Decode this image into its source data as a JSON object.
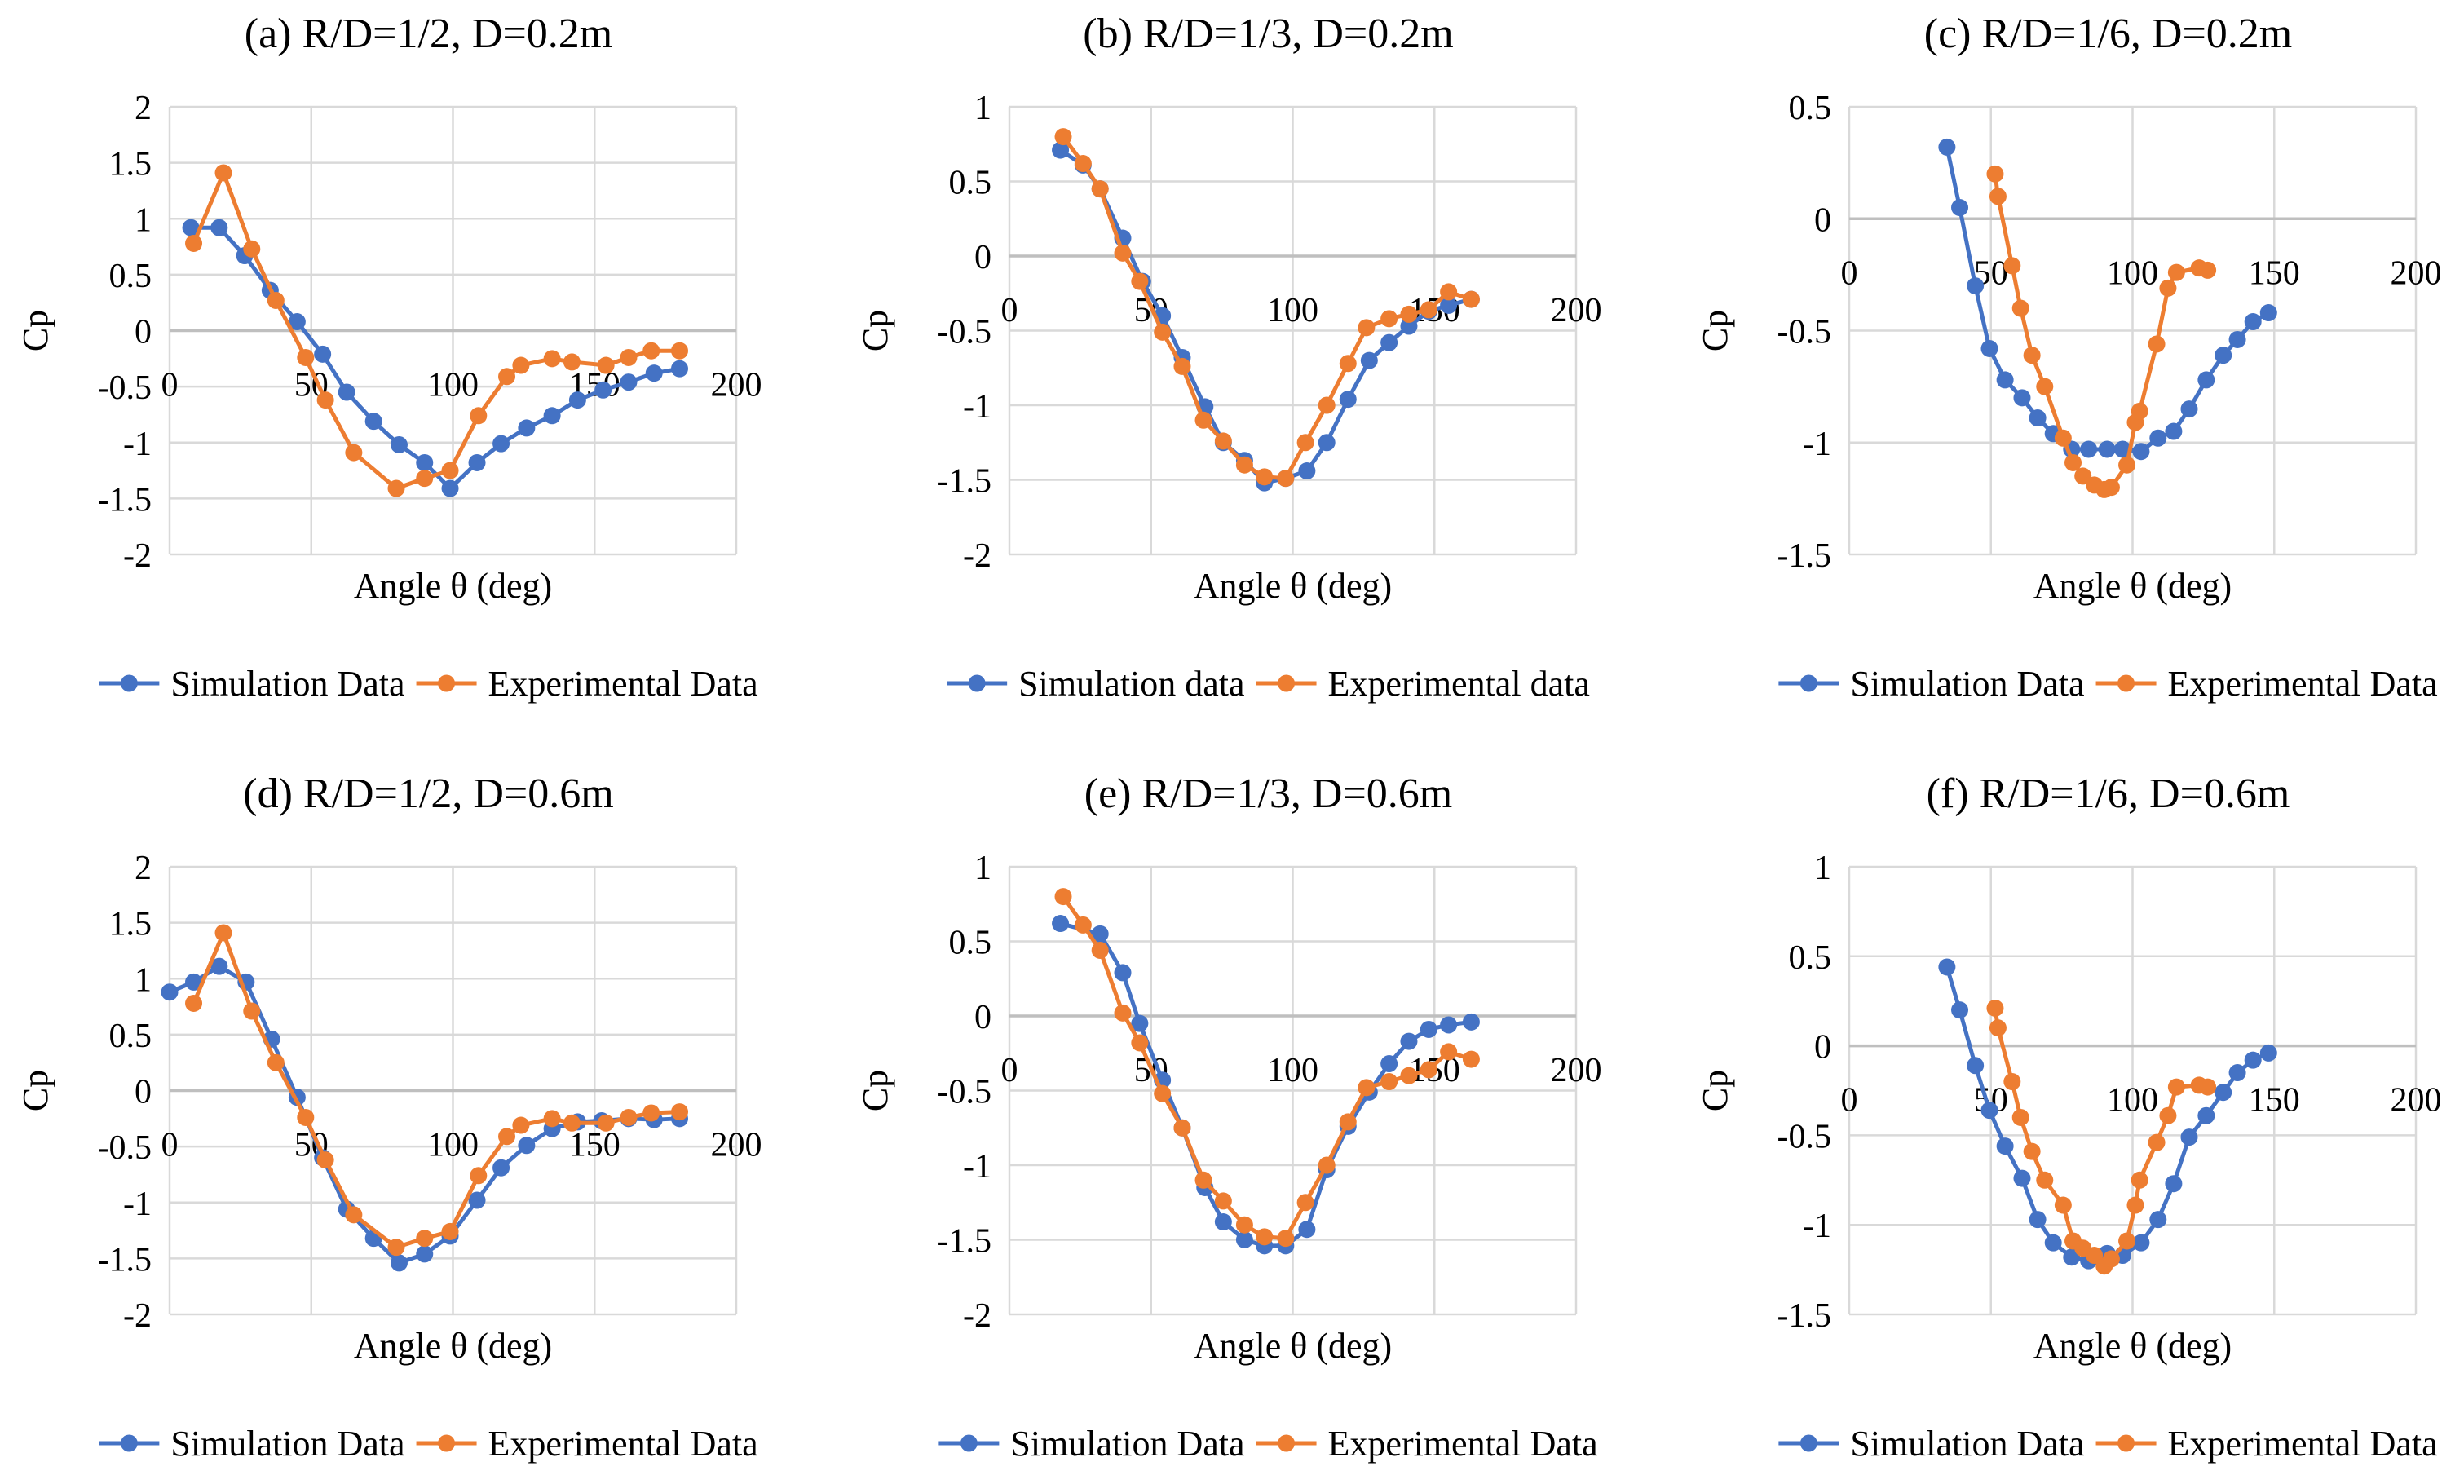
{
  "colors": {
    "simulation": "#4472C4",
    "experimental": "#ED7D31"
  },
  "chart_data": [
    {
      "type": "line",
      "title": "(a) R/D=1/2, D=0.2m",
      "xlabel": "Angle θ (deg)",
      "ylabel": "Cp",
      "xlim": [
        0,
        200
      ],
      "ylim": [
        -2,
        2
      ],
      "xticks": [
        0,
        50,
        100,
        150,
        200
      ],
      "yticks": [
        -2,
        -1.5,
        -1,
        -0.5,
        0,
        0.5,
        1,
        1.5,
        2
      ],
      "grid": true,
      "legend": "bottom",
      "series": [
        {
          "name": "Simulation Data",
          "color": "#4472C4",
          "x": [
            7.5,
            17.5,
            26.5,
            35.5,
            45,
            54,
            62.5,
            72,
            81,
            90,
            99,
            108.5,
            117,
            126,
            135,
            144,
            153,
            162,
            171,
            180
          ],
          "y": [
            0.92,
            0.92,
            0.67,
            0.36,
            0.08,
            -0.21,
            -0.55,
            -0.81,
            -1.02,
            -1.18,
            -1.41,
            -1.18,
            -1.01,
            -0.87,
            -0.76,
            -0.62,
            -0.53,
            -0.46,
            -0.38,
            -0.34
          ]
        },
        {
          "name": "Experimental Data",
          "color": "#ED7D31",
          "x": [
            8.5,
            19,
            29,
            37.5,
            48,
            55,
            65,
            80,
            90,
            99,
            109,
            119,
            124,
            135,
            142,
            154,
            162,
            170,
            180
          ],
          "y": [
            0.78,
            1.41,
            0.73,
            0.27,
            -0.24,
            -0.62,
            -1.09,
            -1.41,
            -1.32,
            -1.25,
            -0.76,
            -0.41,
            -0.31,
            -0.25,
            -0.28,
            -0.31,
            -0.24,
            -0.18,
            -0.18
          ]
        }
      ]
    },
    {
      "type": "line",
      "title": "(b) R/D=1/3, D=0.2m",
      "xlabel": "Angle θ (deg)",
      "ylabel": "Cp",
      "xlim": [
        0,
        200
      ],
      "ylim": [
        -2,
        1
      ],
      "xticks": [
        0,
        50,
        100,
        150,
        200
      ],
      "yticks": [
        -2,
        -1.5,
        -1,
        -0.5,
        0,
        0.5,
        1
      ],
      "grid": true,
      "legend": "bottom",
      "series": [
        {
          "name": "Simulation data",
          "color": "#4472C4",
          "x": [
            18,
            26,
            32,
            40,
            47,
            54,
            61,
            69,
            75.5,
            83,
            90,
            97.5,
            105,
            112,
            119.5,
            127,
            134,
            141,
            148,
            155,
            163
          ],
          "y": [
            0.71,
            0.61,
            0.45,
            0.12,
            -0.17,
            -0.4,
            -0.68,
            -1.01,
            -1.25,
            -1.37,
            -1.52,
            -1.49,
            -1.44,
            -1.25,
            -0.96,
            -0.7,
            -0.58,
            -0.47,
            -0.37,
            -0.33,
            -0.29
          ]
        },
        {
          "name": "Experimental data",
          "color": "#ED7D31",
          "x": [
            19,
            26,
            32,
            40,
            46,
            54,
            61,
            68.5,
            75.5,
            83,
            90,
            97.5,
            104.5,
            112,
            119.5,
            126,
            134,
            141,
            148,
            155,
            163
          ],
          "y": [
            0.8,
            0.62,
            0.45,
            0.02,
            -0.17,
            -0.51,
            -0.74,
            -1.1,
            -1.24,
            -1.4,
            -1.48,
            -1.49,
            -1.25,
            -1.0,
            -0.72,
            -0.48,
            -0.42,
            -0.39,
            -0.36,
            -0.24,
            -0.29
          ]
        }
      ]
    },
    {
      "type": "line",
      "title": "(c) R/D=1/6, D=0.2m",
      "xlabel": "Angle θ (deg)",
      "ylabel": "Cp",
      "xlim": [
        0,
        200
      ],
      "ylim": [
        -1.5,
        0.5
      ],
      "xticks": [
        0,
        50,
        100,
        150,
        200
      ],
      "yticks": [
        -1.5,
        -1,
        -0.5,
        0,
        0.5
      ],
      "grid": true,
      "legend": "bottom",
      "series": [
        {
          "name": "Simulation Data",
          "color": "#4472C4",
          "x": [
            34.5,
            39,
            44.5,
            49.5,
            55,
            61,
            66.5,
            72,
            78.5,
            84.5,
            91,
            96.5,
            103,
            109,
            114.5,
            120,
            126,
            132,
            137,
            142.5,
            148
          ],
          "y": [
            0.32,
            0.05,
            -0.3,
            -0.58,
            -0.72,
            -0.8,
            -0.89,
            -0.96,
            -1.03,
            -1.03,
            -1.03,
            -1.03,
            -1.04,
            -0.98,
            -0.95,
            -0.85,
            -0.72,
            -0.61,
            -0.54,
            -0.46,
            -0.42
          ]
        },
        {
          "name": "Experimental Data",
          "color": "#ED7D31",
          "x": [
            51.5,
            52.5,
            57.5,
            60.5,
            64.5,
            69,
            75.5,
            79,
            82.5,
            86.5,
            90,
            92.5,
            98,
            101,
            102.5,
            108.5,
            112.5,
            115.5,
            123.5,
            126.5
          ],
          "y": [
            0.2,
            0.1,
            -0.21,
            -0.4,
            -0.61,
            -0.75,
            -0.98,
            -1.09,
            -1.15,
            -1.19,
            -1.21,
            -1.2,
            -1.1,
            -0.91,
            -0.86,
            -0.56,
            -0.31,
            -0.24,
            -0.22,
            -0.23
          ]
        }
      ]
    },
    {
      "type": "line",
      "title": "(d) R/D=1/2, D=0.6m",
      "xlabel": "Angle θ (deg)",
      "ylabel": "Cp",
      "xlim": [
        0,
        200
      ],
      "ylim": [
        -2,
        2
      ],
      "xticks": [
        0,
        50,
        100,
        150,
        200
      ],
      "yticks": [
        -2,
        -1.5,
        -1,
        -0.5,
        0,
        0.5,
        1,
        1.5,
        2
      ],
      "grid": true,
      "legend": "bottom",
      "series": [
        {
          "name": "Simulation Data",
          "color": "#4472C4",
          "x": [
            0,
            8.5,
            17.5,
            27,
            36,
            45,
            54,
            62.5,
            72,
            81,
            90,
            99,
            108.5,
            117,
            126,
            135,
            144,
            152.5,
            162,
            171,
            180
          ],
          "y": [
            0.88,
            0.97,
            1.11,
            0.97,
            0.46,
            -0.06,
            -0.6,
            -1.06,
            -1.32,
            -1.54,
            -1.46,
            -1.3,
            -0.98,
            -0.69,
            -0.49,
            -0.34,
            -0.28,
            -0.27,
            -0.25,
            -0.26,
            -0.25
          ]
        },
        {
          "name": "Experimental Data",
          "color": "#ED7D31",
          "x": [
            8.5,
            19,
            29,
            37.5,
            48,
            55,
            65,
            80,
            90,
            99,
            109,
            119,
            124,
            135,
            142,
            154,
            162,
            170,
            180
          ],
          "y": [
            0.78,
            1.41,
            0.71,
            0.25,
            -0.24,
            -0.62,
            -1.11,
            -1.4,
            -1.32,
            -1.26,
            -0.76,
            -0.41,
            -0.31,
            -0.25,
            -0.29,
            -0.29,
            -0.24,
            -0.2,
            -0.19
          ]
        }
      ]
    },
    {
      "type": "line",
      "title": "(e) R/D=1/3, D=0.6m",
      "xlabel": "Angle θ (deg)",
      "ylabel": "Cp",
      "xlim": [
        0,
        200
      ],
      "ylim": [
        -2,
        1
      ],
      "xticks": [
        0,
        50,
        100,
        150,
        200
      ],
      "yticks": [
        -2,
        -1.5,
        -1,
        -0.5,
        0,
        0.5,
        1
      ],
      "grid": true,
      "legend": "bottom",
      "series": [
        {
          "name": "Simulation Data",
          "color": "#4472C4",
          "x": [
            18,
            32,
            40,
            46,
            54,
            61,
            69,
            75.5,
            83,
            90,
            97.5,
            105,
            112,
            119.5,
            127,
            134,
            141,
            148,
            155,
            163
          ],
          "y": [
            0.62,
            0.55,
            0.29,
            -0.05,
            -0.43,
            -0.75,
            -1.15,
            -1.38,
            -1.5,
            -1.54,
            -1.54,
            -1.43,
            -1.03,
            -0.74,
            -0.51,
            -0.32,
            -0.17,
            -0.09,
            -0.06,
            -0.04
          ]
        },
        {
          "name": "Experimental Data",
          "color": "#ED7D31",
          "x": [
            19,
            26,
            32,
            40,
            46,
            54,
            61,
            68.5,
            75.5,
            83,
            90,
            97.5,
            104.5,
            112,
            119.5,
            126,
            134,
            141,
            148,
            155,
            163
          ],
          "y": [
            0.8,
            0.61,
            0.44,
            0.02,
            -0.18,
            -0.52,
            -0.75,
            -1.1,
            -1.24,
            -1.4,
            -1.48,
            -1.49,
            -1.25,
            -1.0,
            -0.71,
            -0.48,
            -0.44,
            -0.4,
            -0.36,
            -0.24,
            -0.29
          ]
        }
      ]
    },
    {
      "type": "line",
      "title": "(f) R/D=1/6, D=0.6m",
      "xlabel": "Angle θ (deg)",
      "ylabel": "Cp",
      "xlim": [
        0,
        200
      ],
      "ylim": [
        -1.5,
        1
      ],
      "xticks": [
        0,
        50,
        100,
        150,
        200
      ],
      "yticks": [
        -1.5,
        -1,
        -0.5,
        0,
        0.5,
        1
      ],
      "grid": true,
      "legend": "bottom",
      "series": [
        {
          "name": "Simulation Data",
          "color": "#4472C4",
          "x": [
            34.5,
            39,
            44.5,
            49.5,
            55,
            61,
            66.5,
            72,
            78.5,
            84.5,
            91,
            96.5,
            103,
            109,
            114.5,
            120,
            126,
            132,
            137,
            142.5,
            148
          ],
          "y": [
            0.44,
            0.2,
            -0.11,
            -0.36,
            -0.56,
            -0.74,
            -0.97,
            -1.1,
            -1.18,
            -1.2,
            -1.16,
            -1.17,
            -1.1,
            -0.97,
            -0.77,
            -0.51,
            -0.39,
            -0.26,
            -0.15,
            -0.08,
            -0.04
          ]
        },
        {
          "name": "Experimental Data",
          "color": "#ED7D31",
          "x": [
            51.5,
            52.5,
            57.5,
            60.5,
            64.5,
            69,
            75.5,
            79,
            82.5,
            86.5,
            90,
            92.5,
            98,
            101,
            102.5,
            108.5,
            112.5,
            115.5,
            123.5,
            126.5
          ],
          "y": [
            0.21,
            0.1,
            -0.2,
            -0.4,
            -0.59,
            -0.75,
            -0.89,
            -1.09,
            -1.13,
            -1.17,
            -1.23,
            -1.19,
            -1.09,
            -0.89,
            -0.75,
            -0.54,
            -0.39,
            -0.23,
            -0.22,
            -0.23
          ]
        }
      ]
    }
  ]
}
